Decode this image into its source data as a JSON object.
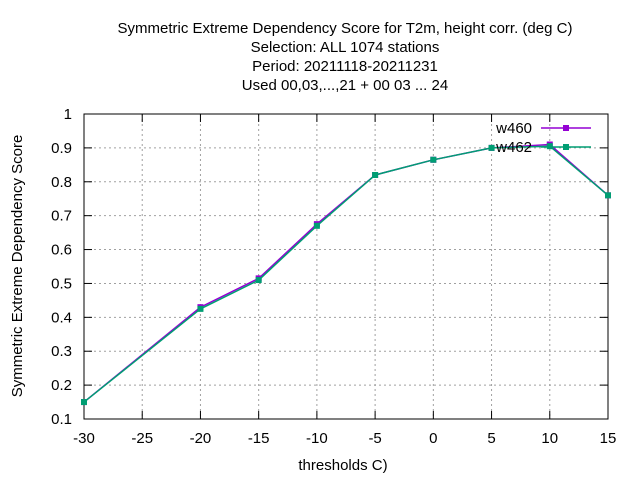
{
  "chart_data": {
    "type": "line",
    "title_lines": [
      "Symmetric Extreme Dependency Score  for T2m, height corr. (deg C)",
      "Selection: ALL   1074 stations",
      "Period: 20211118-20211231",
      "Used  00,03,...,21  + 00 03 ... 24"
    ],
    "xlabel": "thresholds C)",
    "ylabel": "Symmetric Extreme Dependency Score",
    "xlim": [
      -30,
      15
    ],
    "ylim": [
      0.1,
      1
    ],
    "xticks": [
      -30,
      -25,
      -20,
      -15,
      -10,
      -5,
      0,
      5,
      10,
      15
    ],
    "yticks": [
      0.1,
      0.2,
      0.3,
      0.4,
      0.5,
      0.6,
      0.7,
      0.8,
      0.9,
      1
    ],
    "ytick_labels": [
      "0.1",
      "0.2",
      "0.3",
      "0.4",
      "0.5",
      "0.6",
      "0.7",
      "0.8",
      "0.9",
      "1"
    ],
    "grid": true,
    "legend_position": "top-right",
    "x": [
      -30,
      -20,
      -15,
      -10,
      -5,
      0,
      5,
      10,
      15
    ],
    "series": [
      {
        "name": "w460",
        "color": "#9400d3",
        "values": [
          0.15,
          0.43,
          0.515,
          0.675,
          0.82,
          0.865,
          0.9,
          0.91,
          0.76
        ]
      },
      {
        "name": "w462",
        "color": "#009e73",
        "values": [
          0.15,
          0.425,
          0.51,
          0.67,
          0.82,
          0.865,
          0.9,
          0.905,
          0.76
        ]
      }
    ]
  }
}
